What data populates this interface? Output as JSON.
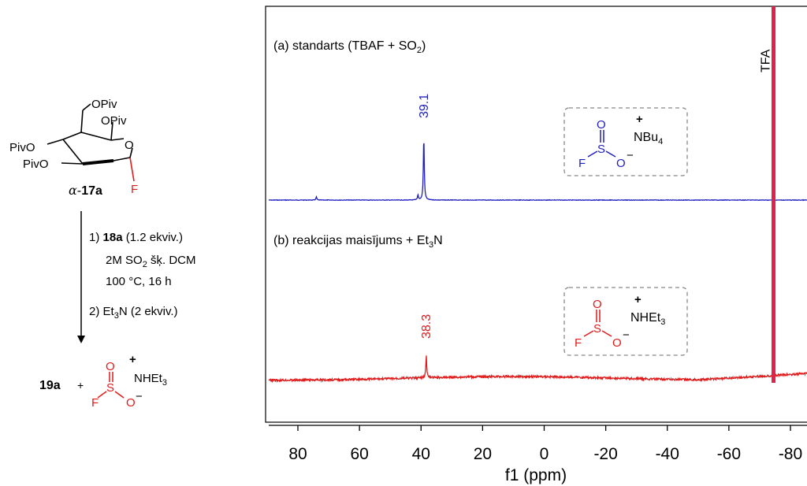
{
  "scheme": {
    "sugar_substituents": [
      "OPiv",
      "OPiv",
      "PivO",
      "PivO"
    ],
    "ring_oxygen": "O",
    "anomeric_substituent": "F",
    "compound_prefix": "α-",
    "compound_label": "17a",
    "step1_number": "1)",
    "step1_reagent": "18a",
    "step1_amount": "(1.2 ekviv.)",
    "step1_solvent_a": "2M SO",
    "step1_solvent_sub": "2",
    "step1_solvent_b": " šķ. DCM",
    "step1_conditions": "100 °C, 16 h",
    "step2_number": "2)",
    "step2_reagent_a": "Et",
    "step2_reagent_sub": "3",
    "step2_reagent_b": "N (2 ekviv.)",
    "product_label": "19a",
    "plus": "+",
    "product_anion_atoms": [
      "O",
      "S",
      "F",
      "O"
    ],
    "product_cation_a": "NHEt",
    "product_cation_sub": "3",
    "charge_plus": "+",
    "charge_minus": "−"
  },
  "chart_data": {
    "type": "line",
    "xlabel": "f1 (ppm)",
    "xlim": [
      90,
      -88
    ],
    "x_reversed": true,
    "xticks": [
      80,
      60,
      40,
      20,
      0,
      -20,
      -40,
      -60,
      -80
    ],
    "grid": false,
    "series": [
      {
        "name": "(a) standarts (TBAF + SO2)",
        "label_parts": [
          "(a) standarts (TBAF + SO",
          "2",
          ")"
        ],
        "color": "#1f1fbf",
        "peaks": [
          {
            "x": 39.1,
            "height": 1.0,
            "label": "39.1"
          },
          {
            "x": 41.0,
            "height": 0.08
          },
          {
            "x": 74.0,
            "height": 0.05
          }
        ],
        "species": {
          "anion_atoms": [
            "O",
            "S",
            "F",
            "O"
          ],
          "cation_a": "NBu",
          "cation_sub": "4"
        }
      },
      {
        "name": "(b) reakcijas maisījums + Et3N",
        "label_parts": [
          "(b) reakcijas maisījums + Et",
          "3",
          "N"
        ],
        "color": "#e01b1b",
        "peaks": [
          {
            "x": 38.3,
            "height": 0.35,
            "label": "38.3"
          }
        ],
        "baseline_hump": true,
        "species": {
          "anion_atoms": [
            "O",
            "S",
            "F",
            "O"
          ],
          "cation_a": "NHEt",
          "cation_sub": "3"
        }
      }
    ],
    "reference_peak": {
      "x": -74.5,
      "label": "TFA",
      "color": "#e0224b"
    }
  }
}
